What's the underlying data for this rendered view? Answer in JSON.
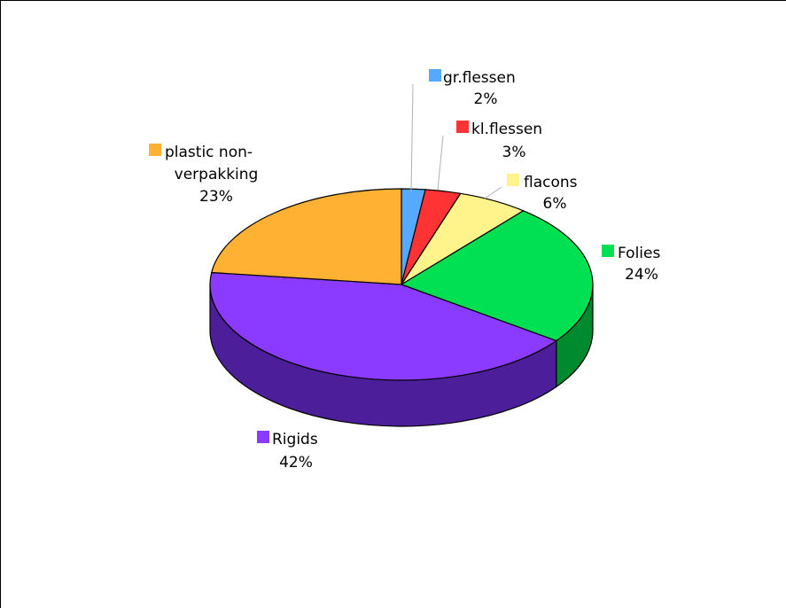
{
  "chart_data": {
    "type": "pie",
    "style": "3d",
    "categories": [
      "gr.flessen",
      "kl.flessen",
      "flacons",
      "Folies",
      "Rigids",
      "plastic non-verpakking"
    ],
    "values": [
      2,
      3,
      6,
      24,
      42,
      23
    ],
    "labels": [
      {
        "name_lines": [
          "gr.flessen"
        ],
        "pct": "2%"
      },
      {
        "name_lines": [
          "kl.flessen"
        ],
        "pct": "3%"
      },
      {
        "name_lines": [
          "flacons"
        ],
        "pct": "6%"
      },
      {
        "name_lines": [
          "Folies"
        ],
        "pct": "24%"
      },
      {
        "name_lines": [
          "Rigids"
        ],
        "pct": "42%"
      },
      {
        "name_lines": [
          "plastic non-",
          "verpakking"
        ],
        "pct": "23%"
      }
    ],
    "colors": [
      "#55aaff",
      "#ff3333",
      "#fff48c",
      "#00e052",
      "#8a3bff",
      "#ffb133"
    ],
    "side_colors": [
      "#2f78c4",
      "#b51f1f",
      "#c9be52",
      "#008a30",
      "#4d1e99",
      "#c9801a"
    ],
    "title": "",
    "legend": "none"
  }
}
